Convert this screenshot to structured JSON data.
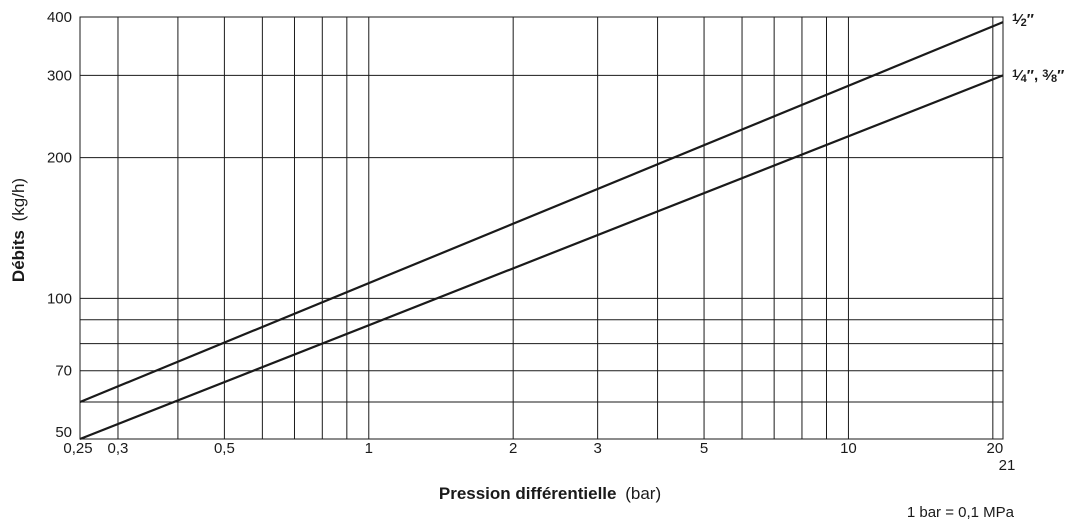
{
  "chart_data": {
    "type": "line",
    "x_scale": "log",
    "y_scale": "log",
    "xlim": [
      0.25,
      21
    ],
    "ylim": [
      50,
      400
    ],
    "grid": true,
    "xlabel_bold": "Pression différentielle",
    "xlabel_unit": "(bar)",
    "ylabel_bold": "Débits",
    "ylabel_unit": "(kg/h)",
    "x_ticks": [
      {
        "value": 0.25,
        "label": "0,25"
      },
      {
        "value": 0.3,
        "label": "0,3"
      },
      {
        "value": 0.5,
        "label": "0,5"
      },
      {
        "value": 1,
        "label": "1"
      },
      {
        "value": 2,
        "label": "2"
      },
      {
        "value": 3,
        "label": "3"
      },
      {
        "value": 5,
        "label": "5"
      },
      {
        "value": 10,
        "label": "10"
      },
      {
        "value": 20,
        "label": "20"
      },
      {
        "value": 21,
        "label": "21"
      }
    ],
    "x_grid": [
      0.3,
      0.4,
      0.5,
      0.6,
      0.7,
      0.8,
      0.9,
      1,
      2,
      3,
      4,
      5,
      6,
      7,
      8,
      9,
      10,
      20,
      21
    ],
    "y_ticks": [
      {
        "value": 50,
        "label": "50"
      },
      {
        "value": 70,
        "label": "70"
      },
      {
        "value": 100,
        "label": "100"
      },
      {
        "value": 200,
        "label": "200"
      },
      {
        "value": 300,
        "label": "300"
      },
      {
        "value": 400,
        "label": "400"
      }
    ],
    "y_grid": [
      50,
      60,
      70,
      80,
      90,
      100,
      200,
      300,
      400
    ],
    "series": [
      {
        "name": "1/2″",
        "x": [
          0.25,
          21
        ],
        "y": [
          60,
          390
        ]
      },
      {
        "name": "1/4″, 3/8″",
        "x": [
          0.25,
          21
        ],
        "y": [
          50,
          300
        ]
      }
    ],
    "series_labels": [
      {
        "whole": "",
        "num": "1",
        "den": "2",
        "suffix": "″"
      },
      {
        "whole": "",
        "num": "1",
        "den": "4",
        "suffix": "″, ",
        "num2": "3",
        "den2": "8",
        "suffix2": "″"
      }
    ],
    "note": "1 bar = 0,1 MPa"
  }
}
